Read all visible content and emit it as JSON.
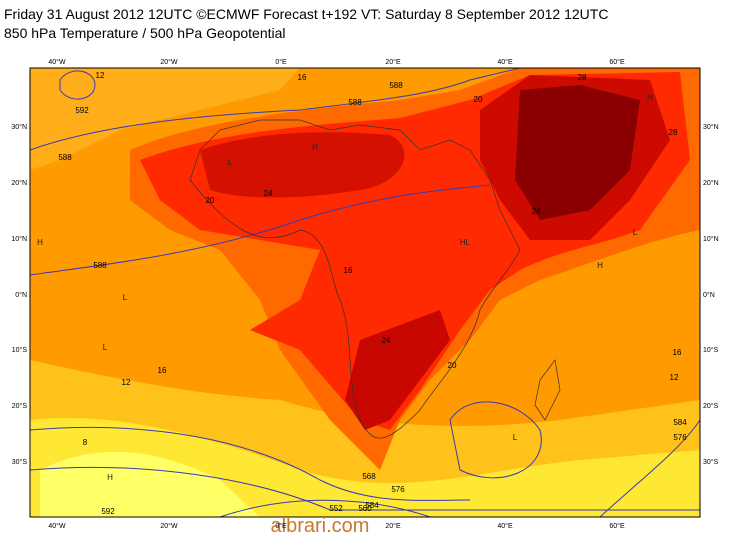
{
  "header": {
    "title": "Friday 31 August 2012 12UTC ©ECMWF Forecast t+192 VT: Saturday 8 September 2012 12UTC",
    "subtitle": "850 hPa Temperature / 500 hPa Geopotential"
  },
  "map": {
    "lon_labels": [
      "40°W",
      "20°W",
      "0°E",
      "20°E",
      "40°E",
      "60°E"
    ],
    "lat_labels": [
      "30°N",
      "20°N",
      "10°N",
      "0°N",
      "10°S",
      "20°S",
      "30°S"
    ],
    "temperature_labels": [
      "12",
      "16",
      "20",
      "24",
      "28",
      "16",
      "24",
      "28",
      "20",
      "24",
      "20",
      "16",
      "12",
      "16",
      "12",
      "8"
    ],
    "geopotential_labels": [
      "592",
      "588",
      "588",
      "588",
      "588",
      "584",
      "576",
      "568",
      "560",
      "552",
      "584",
      "576",
      "592"
    ],
    "pressure_markers": [
      "H",
      "H",
      "L",
      "H",
      "HL",
      "L",
      "H",
      "L",
      "H",
      "L",
      "L"
    ]
  },
  "watermark": "albrari.com"
}
